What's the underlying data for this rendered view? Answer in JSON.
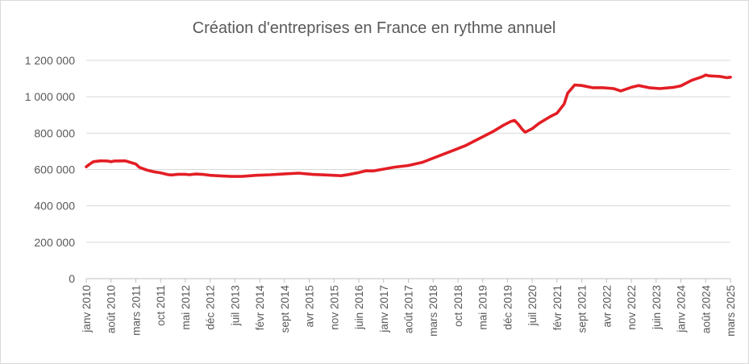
{
  "chart_data": {
    "type": "line",
    "title": "Création d'entreprises en France en rythme annuel",
    "xlabel": "",
    "ylabel": "",
    "ylim": [
      0,
      1200000
    ],
    "yticks": [
      0,
      200000,
      400000,
      600000,
      800000,
      1000000,
      1200000
    ],
    "ytick_labels": [
      "0",
      "200 000",
      "400 000",
      "600 000",
      "800 000",
      "1 000 000",
      "1 200 000"
    ],
    "x_start": "2010-01",
    "x_end": "2025-03",
    "xtick_labels": [
      "janv 2010",
      "août 2010",
      "mars 2011",
      "oct 2011",
      "mai 2012",
      "déc 2012",
      "juil 2013",
      "févr 2014",
      "sept 2014",
      "avr 2015",
      "nov 2015",
      "juin 2016",
      "janv 2017",
      "août 2017",
      "mars 2018",
      "oct 2018",
      "mai 2019",
      "déc 2019",
      "juil 2020",
      "févr 2021",
      "sept 2021",
      "avr 2022",
      "nov 2022",
      "juin 2023",
      "janv 2024",
      "août 2024",
      "mars 2025"
    ],
    "grid": true,
    "legend": "none",
    "line_color": "#e31e24",
    "series": [
      {
        "points": [
          [
            "2010-01",
            615000
          ],
          [
            "2010-02",
            630000
          ],
          [
            "2010-03",
            643000
          ],
          [
            "2010-05",
            648000
          ],
          [
            "2010-07",
            647000
          ],
          [
            "2010-08",
            643000
          ],
          [
            "2010-09",
            647000
          ],
          [
            "2010-12",
            648000
          ],
          [
            "2011-02",
            636000
          ],
          [
            "2011-03",
            630000
          ],
          [
            "2011-04",
            612000
          ],
          [
            "2011-06",
            598000
          ],
          [
            "2011-08",
            588000
          ],
          [
            "2011-10",
            582000
          ],
          [
            "2011-12",
            572000
          ],
          [
            "2012-01",
            570000
          ],
          [
            "2012-03",
            574000
          ],
          [
            "2012-05",
            574000
          ],
          [
            "2012-06",
            571000
          ],
          [
            "2012-08",
            575000
          ],
          [
            "2012-10",
            573000
          ],
          [
            "2012-12",
            568000
          ],
          [
            "2013-03",
            565000
          ],
          [
            "2013-06",
            562000
          ],
          [
            "2013-09",
            562000
          ],
          [
            "2014-01",
            568000
          ],
          [
            "2014-05",
            571000
          ],
          [
            "2014-09",
            576000
          ],
          [
            "2015-01",
            580000
          ],
          [
            "2015-05",
            573000
          ],
          [
            "2015-09",
            570000
          ],
          [
            "2016-01",
            566000
          ],
          [
            "2016-03",
            572000
          ],
          [
            "2016-06",
            583000
          ],
          [
            "2016-08",
            593000
          ],
          [
            "2016-10",
            592000
          ],
          [
            "2017-01",
            602000
          ],
          [
            "2017-04",
            613000
          ],
          [
            "2017-08",
            622000
          ],
          [
            "2017-12",
            640000
          ],
          [
            "2018-04",
            670000
          ],
          [
            "2018-08",
            700000
          ],
          [
            "2018-12",
            730000
          ],
          [
            "2019-04",
            770000
          ],
          [
            "2019-08",
            810000
          ],
          [
            "2019-11",
            845000
          ],
          [
            "2020-01",
            865000
          ],
          [
            "2020-02",
            870000
          ],
          [
            "2020-03",
            850000
          ],
          [
            "2020-04",
            825000
          ],
          [
            "2020-05",
            805000
          ],
          [
            "2020-07",
            825000
          ],
          [
            "2020-09",
            855000
          ],
          [
            "2020-12",
            890000
          ],
          [
            "2021-02",
            910000
          ],
          [
            "2021-04",
            960000
          ],
          [
            "2021-05",
            1020000
          ],
          [
            "2021-07",
            1065000
          ],
          [
            "2021-09",
            1062000
          ],
          [
            "2021-12",
            1050000
          ],
          [
            "2022-03",
            1050000
          ],
          [
            "2022-06",
            1045000
          ],
          [
            "2022-08",
            1032000
          ],
          [
            "2022-11",
            1052000
          ],
          [
            "2023-01",
            1062000
          ],
          [
            "2023-04",
            1050000
          ],
          [
            "2023-07",
            1045000
          ],
          [
            "2023-11",
            1052000
          ],
          [
            "2024-01",
            1060000
          ],
          [
            "2024-04",
            1090000
          ],
          [
            "2024-07",
            1110000
          ],
          [
            "2024-08",
            1120000
          ],
          [
            "2024-09",
            1115000
          ],
          [
            "2024-12",
            1112000
          ],
          [
            "2025-02",
            1105000
          ],
          [
            "2025-03",
            1108000
          ]
        ]
      }
    ]
  }
}
